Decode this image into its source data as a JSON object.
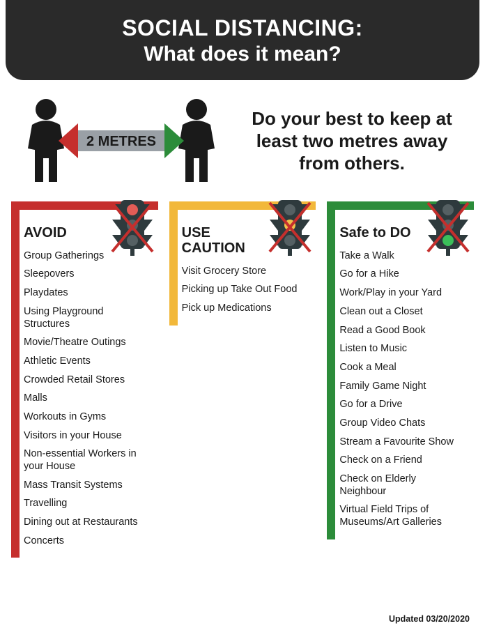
{
  "header": {
    "title_line1": "SOCIAL DISTANCING:",
    "title_line2": "What does it mean?",
    "bg_color": "#2a2a2a",
    "text_color": "#ffffff"
  },
  "hero": {
    "distance_label": "2 METRES",
    "subtitle": "Do your best to keep at least two metres away from others.",
    "person_color": "#1a1a1a",
    "arrow_fill": "#9aa0a6",
    "arrow_head_left": "#c52f2d",
    "arrow_head_right": "#2c8c3a"
  },
  "traffic_light": {
    "body_color": "#2e3a3d",
    "off_color": "#556063",
    "red": "#e25c56",
    "yellow": "#f2c14a",
    "green": "#3bbf5a",
    "cross_color": "#c52f2d"
  },
  "columns": {
    "avoid": {
      "frame_color": "#c52f2d",
      "title": "AVOID",
      "active_light": "red",
      "items": [
        "Group Gatherings",
        "Sleepovers",
        "Playdates",
        "Using Playground Structures",
        "Movie/Theatre Outings",
        "Athletic Events",
        "Crowded Retail Stores",
        "Malls",
        "Workouts in Gyms",
        "Visitors in your House",
        "Non-essential Workers in your House",
        "Mass Transit Systems",
        "Travelling",
        "Dining out at Restaurants",
        "Concerts"
      ]
    },
    "caution": {
      "frame_color": "#f2b83a",
      "title": "USE CAUTION",
      "active_light": "yellow",
      "items": [
        "Visit Grocery Store",
        "Picking up Take Out Food",
        "Pick up Medications"
      ]
    },
    "safe": {
      "frame_color": "#2c8c3a",
      "title": "Safe to DO",
      "active_light": "green",
      "items": [
        "Take a Walk",
        "Go for a Hike",
        "Work/Play in your Yard",
        "Clean out a Closet",
        "Read a Good Book",
        "Listen to Music",
        "Cook a Meal",
        "Family Game Night",
        "Go for a Drive",
        "Group Video Chats",
        "Stream a Favourite Show",
        "Check on a Friend",
        "Check on Elderly Neighbour",
        "Virtual Field Trips of Museums/Art Galleries"
      ]
    }
  },
  "footer": {
    "updated": "Updated 03/20/2020"
  }
}
